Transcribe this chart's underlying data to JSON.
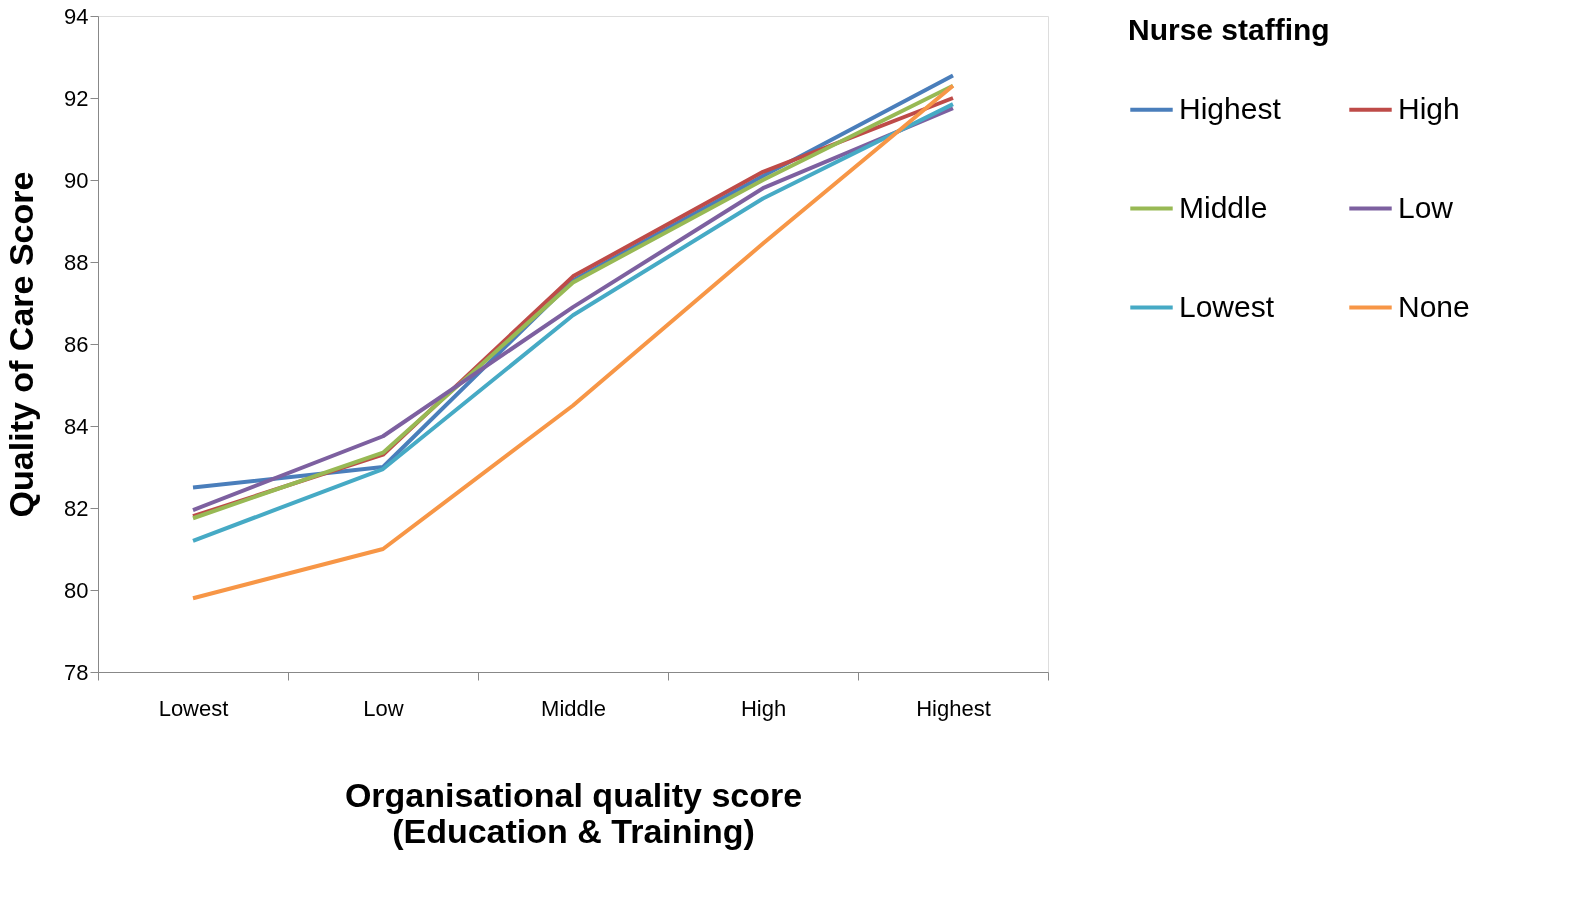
{
  "chart_data": {
    "type": "line",
    "xlabel": "Organisational quality score\n(Education & Training)",
    "ylabel": "Quality of Care Score",
    "legend_title": "Nurse staffing",
    "categories": [
      "Lowest",
      "Low",
      "Middle",
      "High",
      "Highest"
    ],
    "series": [
      {
        "name": "Highest",
        "color": "#4a7ebb",
        "values": [
          82.5,
          83.0,
          87.55,
          90.1,
          92.55
        ]
      },
      {
        "name": "High",
        "color": "#be4b48",
        "values": [
          81.8,
          83.3,
          87.65,
          90.2,
          92.0
        ]
      },
      {
        "name": "Middle",
        "color": "#98b954",
        "values": [
          81.75,
          83.35,
          87.5,
          90.0,
          92.3
        ]
      },
      {
        "name": "Low",
        "color": "#7d60a0",
        "values": [
          81.95,
          83.75,
          86.9,
          89.8,
          91.75
        ]
      },
      {
        "name": "Lowest",
        "color": "#46aac5",
        "values": [
          81.2,
          82.95,
          86.7,
          89.55,
          91.85
        ]
      },
      {
        "name": "None",
        "color": "#f79646",
        "values": [
          79.8,
          81.0,
          84.5,
          88.45,
          92.3
        ]
      }
    ],
    "ylim": [
      78,
      94
    ],
    "yticks": [
      78,
      80,
      82,
      84,
      86,
      88,
      90,
      92,
      94
    ],
    "grid": false,
    "legend": "right",
    "marker": "none",
    "line_style": "solid"
  }
}
